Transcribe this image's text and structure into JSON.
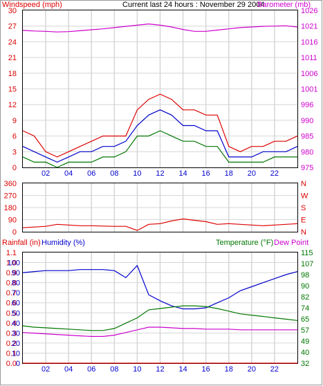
{
  "header": {
    "title": "Current last 24 hours : November 29 2004"
  },
  "colors": {
    "red": "#dd0000",
    "blue": "#0000cc",
    "green": "#007700",
    "magenta": "#cc00cc",
    "grid": "#d6d6d6",
    "frame": "#000000"
  },
  "x_ticks": [
    "02",
    "04",
    "06",
    "08",
    "10",
    "12",
    "14",
    "16",
    "18",
    "20",
    "22"
  ],
  "chart_data": [
    {
      "type": "line",
      "left_label": "Windspeed (mph)",
      "right_label": "Barometer (mb)",
      "y_left_ticks": [
        "0",
        "3",
        "6",
        "9",
        "12",
        "15",
        "18",
        "21",
        "24",
        "27",
        "30"
      ],
      "y_right_ticks": [
        "975",
        "980",
        "985",
        "990",
        "996",
        "1001",
        "1006",
        "1011",
        "1016",
        "1021",
        "1026"
      ],
      "ylim_left": [
        0,
        30
      ],
      "ylim_right": [
        975,
        1026
      ],
      "x": [
        0,
        1,
        2,
        3,
        4,
        5,
        6,
        7,
        8,
        9,
        10,
        11,
        12,
        13,
        14,
        15,
        16,
        17,
        18,
        19,
        20,
        21,
        22,
        23,
        24
      ],
      "series": [
        {
          "color": "red",
          "axis": "left",
          "values": [
            7,
            6,
            3,
            2,
            3,
            4,
            5,
            6,
            6,
            6,
            11,
            13,
            14,
            13,
            11,
            11,
            10,
            10,
            4,
            3,
            4,
            4,
            5,
            5,
            6
          ]
        },
        {
          "color": "blue",
          "axis": "left",
          "values": [
            4,
            3,
            2,
            1,
            2,
            3,
            3,
            4,
            4,
            5,
            8,
            10,
            11,
            10,
            8,
            8,
            7,
            7,
            2,
            2,
            2,
            3,
            3,
            3,
            4
          ]
        },
        {
          "color": "green",
          "axis": "left",
          "values": [
            2,
            1,
            1,
            0,
            1,
            1,
            1,
            2,
            2,
            3,
            6,
            6,
            7,
            6,
            5,
            5,
            4,
            4,
            1,
            1,
            1,
            1,
            2,
            2,
            2
          ]
        },
        {
          "color": "magenta",
          "axis": "right",
          "values": [
            1019.5,
            1019.3,
            1019.2,
            1019.0,
            1019.1,
            1019.4,
            1019.7,
            1020.0,
            1020.4,
            1020.8,
            1021.2,
            1021.6,
            1021.2,
            1020.6,
            1019.8,
            1019.2,
            1019.2,
            1019.6,
            1020.0,
            1020.4,
            1020.6,
            1020.8,
            1020.9,
            1021.0,
            1020.6
          ]
        }
      ]
    },
    {
      "type": "line",
      "y_left_ticks": [
        "0",
        "90",
        "180",
        "270",
        "360"
      ],
      "y_right_ticks": [
        "N",
        "E",
        "S",
        "W",
        "N"
      ],
      "ylim_left": [
        0,
        360
      ],
      "x": [
        0,
        1,
        2,
        3,
        4,
        5,
        6,
        7,
        8,
        9,
        10,
        11,
        12,
        13,
        14,
        15,
        16,
        17,
        18,
        19,
        20,
        21,
        22,
        23,
        24
      ],
      "series": [
        {
          "color": "red",
          "axis": "left",
          "values": [
            30,
            35,
            40,
            55,
            50,
            45,
            45,
            42,
            40,
            40,
            10,
            55,
            60,
            80,
            95,
            85,
            75,
            55,
            60,
            55,
            50,
            45,
            50,
            55,
            60
          ]
        }
      ]
    },
    {
      "type": "line",
      "left_label": "Rainfall (in)",
      "left_label_2": "Humidity (%)",
      "right_label": "Temperature (°F)",
      "right_label_2": "Dew Point",
      "y_left_ticks": [
        "0.0",
        "0.1",
        "0.2",
        "0.3",
        "0.4",
        "0.5",
        "0.6",
        "0.7",
        "0.8",
        "0.9",
        "1.0",
        "1.1"
      ],
      "y_left_ticks_2": [
        "0",
        "10",
        "20",
        "30",
        "40",
        "50",
        "60",
        "70",
        "80",
        "90",
        "100"
      ],
      "y_right_ticks": [
        "32",
        "40",
        "49",
        "57",
        "65",
        "74",
        "82",
        "90",
        "98",
        "107",
        "115"
      ],
      "ylim_left": [
        0,
        1.1
      ],
      "ylim_humidity": [
        0,
        110
      ],
      "ylim_right": [
        32,
        115
      ],
      "x": [
        0,
        1,
        2,
        3,
        4,
        5,
        6,
        7,
        8,
        9,
        10,
        11,
        12,
        13,
        14,
        15,
        16,
        17,
        18,
        19,
        20,
        21,
        22,
        23,
        24
      ],
      "series": [
        {
          "color": "blue",
          "axis": "humidity",
          "values": [
            90,
            91,
            92,
            92,
            92,
            93,
            93,
            93,
            92,
            85,
            97,
            68,
            62,
            57,
            54,
            54,
            55,
            60,
            65,
            72,
            76,
            80,
            84,
            88,
            91
          ]
        },
        {
          "color": "green",
          "axis": "right",
          "values": [
            60,
            59,
            58.5,
            58,
            57.5,
            57,
            56.5,
            56.5,
            58,
            62,
            66,
            72,
            73,
            74,
            75,
            75,
            74.5,
            73,
            71,
            69,
            68,
            67,
            66,
            65,
            64
          ]
        },
        {
          "color": "magenta",
          "axis": "right",
          "values": [
            55,
            54.5,
            54,
            53.5,
            53,
            52.5,
            52,
            52,
            53,
            55,
            57,
            59,
            59,
            58.5,
            58,
            58,
            57.5,
            57.5,
            57.5,
            57,
            57,
            57,
            57,
            57,
            57
          ]
        },
        {
          "color": "red",
          "axis": "left",
          "values": [
            0,
            0,
            0,
            0,
            0,
            0,
            0,
            0,
            0,
            0,
            0,
            0,
            0,
            0,
            0,
            0,
            0,
            0,
            0,
            0,
            0,
            0,
            0,
            0,
            0
          ]
        }
      ]
    }
  ]
}
